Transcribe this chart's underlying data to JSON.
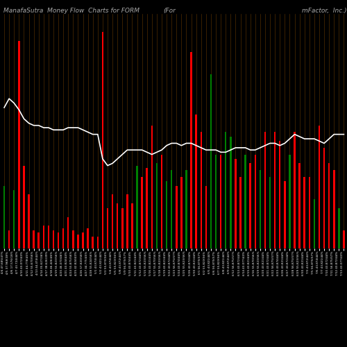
{
  "title_left": "ManafaSutra  Money Flow  Charts for FORM",
  "title_mid": "(For",
  "title_right": "mFactor,  Inc.)",
  "bg_color": "#000000",
  "bar_colors": [
    "green",
    "red",
    "green",
    "red",
    "red",
    "red",
    "red",
    "red",
    "red",
    "red",
    "red",
    "red",
    "red",
    "red",
    "red",
    "red",
    "red",
    "red",
    "red",
    "red",
    "red",
    "red",
    "red",
    "red",
    "red",
    "red",
    "red",
    "green",
    "red",
    "red",
    "red",
    "green",
    "red",
    "green",
    "green",
    "red",
    "red",
    "green",
    "red",
    "red",
    "red",
    "red",
    "green",
    "green",
    "red",
    "green",
    "green",
    "red",
    "red",
    "green",
    "red",
    "red",
    "green",
    "red",
    "green",
    "red",
    "red",
    "red",
    "green",
    "red",
    "red",
    "red",
    "red",
    "green",
    "red",
    "red",
    "red",
    "red",
    "green",
    "red"
  ],
  "bar_values": [
    0.28,
    0.08,
    0.26,
    0.93,
    0.37,
    0.24,
    0.08,
    0.07,
    0.1,
    0.1,
    0.08,
    0.07,
    0.09,
    0.14,
    0.08,
    0.06,
    0.07,
    0.09,
    0.05,
    0.05,
    0.97,
    0.18,
    0.24,
    0.2,
    0.18,
    0.24,
    0.2,
    0.37,
    0.32,
    0.36,
    0.55,
    0.38,
    0.42,
    0.3,
    0.35,
    0.28,
    0.32,
    0.35,
    0.88,
    0.6,
    0.52,
    0.28,
    0.78,
    0.42,
    0.42,
    0.52,
    0.5,
    0.4,
    0.32,
    0.42,
    0.38,
    0.42,
    0.35,
    0.52,
    0.32,
    0.52,
    0.48,
    0.3,
    0.42,
    0.52,
    0.38,
    0.32,
    0.32,
    0.22,
    0.55,
    0.45,
    0.38,
    0.35,
    0.18,
    0.08
  ],
  "line_values": [
    0.63,
    0.67,
    0.65,
    0.62,
    0.58,
    0.56,
    0.55,
    0.55,
    0.54,
    0.54,
    0.53,
    0.53,
    0.53,
    0.54,
    0.54,
    0.54,
    0.53,
    0.52,
    0.51,
    0.51,
    0.4,
    0.37,
    0.38,
    0.4,
    0.42,
    0.44,
    0.44,
    0.44,
    0.44,
    0.43,
    0.42,
    0.43,
    0.44,
    0.46,
    0.47,
    0.47,
    0.46,
    0.47,
    0.47,
    0.46,
    0.45,
    0.44,
    0.44,
    0.44,
    0.43,
    0.43,
    0.44,
    0.45,
    0.45,
    0.45,
    0.44,
    0.44,
    0.45,
    0.46,
    0.47,
    0.47,
    0.46,
    0.47,
    0.49,
    0.51,
    0.5,
    0.49,
    0.49,
    0.49,
    0.48,
    0.47,
    0.49,
    0.51,
    0.51,
    0.51
  ],
  "x_labels": [
    "4/4 47.685(47%",
    "4/5 37.968(38%",
    "4/6 17.576(18%",
    "4/7 43.724(44%",
    "4/10 43.072(43%",
    "4/11 44.778(45%",
    "4/12 55.670(56%",
    "4/13 44.474(44%",
    "4/14 35.627(36%",
    "4/17 38.626(39%",
    "4/18 46.426(46%",
    "4/19 55.823(56%",
    "4/20 46.070(46%",
    "4/21 43.824(44%",
    "4/24 55.875(56%",
    "4/25 42.824(43%",
    "4/26 57.820(58%",
    "4/27 44.775(45%",
    "4/28 55.824(56%",
    "5/1 43.874(44%",
    "5/2 43.821(44%",
    "5/3 55.870(56%",
    "5/4 43.874(44%",
    "5/5 55.823(56%",
    "5/8 43.872(44%",
    "5/9 56.875(57%",
    "5/10 43.874(44%",
    "5/11 43.821(44%",
    "5/12 43.872(44%",
    "5/15 55.823(56%",
    "5/16 43.821(44%",
    "5/17 55.870(56%",
    "5/18 55.823(56%",
    "5/19 43.821(44%",
    "5/22 43.872(44%",
    "5/23 56.875(57%",
    "5/24 43.874(44%",
    "5/25 55.823(56%",
    "5/26 43.872(44%",
    "5/30 43.821(44%",
    "6/1 56.875(57%",
    "6/2 55.823(56%",
    "6/5 43.821(44%",
    "6/6 56.875(57%",
    "6/7 55.823(56%",
    "6/8 43.821(44%",
    "6/9 43.872(44%",
    "6/12 56.875(57%",
    "6/13 43.872(44%",
    "6/14 43.077(43%",
    "6/15 43.821(44%",
    "6/16 55.870(56%",
    "6/19 55.823(56%",
    "6/20 43.821(44%",
    "6/21 43.872(44%",
    "6/22 56.875(57%",
    "6/23 43.874(44%",
    "6/26 43.821(44%",
    "6/27 43.872(44%",
    "6/28 56.875(57%",
    "6/29 55.823(56%",
    "6/30 43.821(44%",
    "7/3 43.872(44%",
    "7/5 56.875(57%",
    "7/6 43.874(44%",
    "7/7 43.821(44%",
    "7/10 43.872(44%",
    "7/11 56.875(57%",
    "7/12 43.872(44%",
    "7/13 43.077(43%"
  ],
  "line_color": "#ffffff",
  "title_color": "#aaaaaa",
  "title_fontsize": 6.5,
  "bg_color_plot": "#000000",
  "grid_color": "#5a3200",
  "bar_width": 0.35
}
